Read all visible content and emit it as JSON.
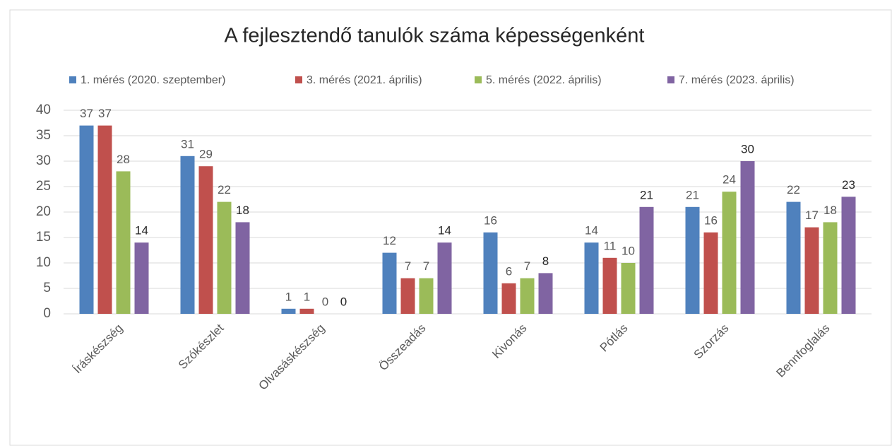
{
  "chart_data": {
    "type": "bar",
    "title": "A fejlesztendő tanulók száma képességenként",
    "categories": [
      "Íráskészség",
      "Szókészlet",
      "Olvasáskészség",
      "Összeadás",
      "Kivonás",
      "Pótlás",
      "Szorzás",
      "Bennfoglalás"
    ],
    "series": [
      {
        "name": "1. mérés (2020. szeptember)",
        "color": "#4f81bd",
        "values": [
          37,
          31,
          1,
          12,
          16,
          14,
          21,
          22
        ]
      },
      {
        "name": "3. mérés (2021. április)",
        "color": "#c0504d",
        "values": [
          37,
          29,
          1,
          7,
          6,
          11,
          16,
          17
        ]
      },
      {
        "name": "5. mérés (2022. április)",
        "color": "#9bbb59",
        "values": [
          28,
          22,
          0,
          7,
          7,
          10,
          24,
          18
        ]
      },
      {
        "name": "7. mérés (2023. április)",
        "color": "#8064a2",
        "values": [
          14,
          18,
          0,
          14,
          8,
          21,
          30,
          23
        ]
      }
    ],
    "ylim": [
      0,
      40
    ],
    "yticks": [
      0,
      5,
      10,
      15,
      20,
      25,
      30,
      35,
      40
    ],
    "grid": true,
    "legend": "top"
  }
}
